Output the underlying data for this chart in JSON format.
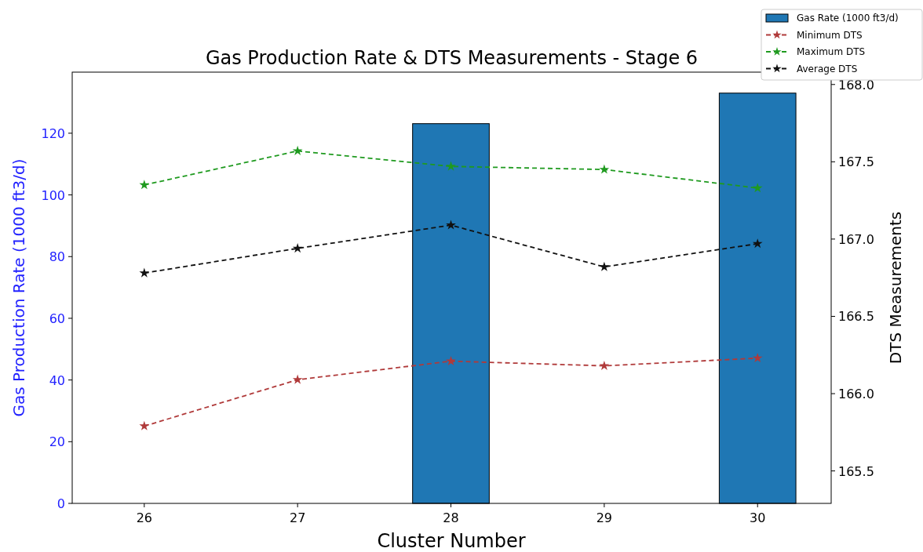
{
  "chart_data": {
    "type": "bar",
    "title": "Gas Production Rate & DTS Measurements - Stage 6",
    "xlabel": "Cluster Number",
    "ylabel": "Gas Production Rate (1000 ft3/d)",
    "y2label": "DTS Measurements",
    "x": [
      26,
      27,
      28,
      29,
      30
    ],
    "xlim": [
      25.53,
      30.48
    ],
    "xticks": [
      26,
      27,
      28,
      29,
      30
    ],
    "ylim": [
      0,
      139.8
    ],
    "yticks": [
      0,
      20,
      40,
      60,
      80,
      100,
      120
    ],
    "y2lim": [
      165.29,
      168.08
    ],
    "y2ticks": [
      165.5,
      {
        "value": 166,
        "label": "166.0"
      },
      166.5,
      {
        "value": 167,
        "label": "167.0"
      },
      167.5,
      {
        "value": 168,
        "label": "168.0"
      }
    ],
    "series": [
      {
        "name": "Gas Rate (1000 ft3/d)",
        "color": "#1f77b4",
        "values": [
          0,
          0,
          123.1,
          0,
          133
        ]
      },
      {
        "name": "Minimum DTS",
        "type": "line",
        "axis": "y2",
        "color": "#b03a3a",
        "marker": "star",
        "line_style": "dashed",
        "values": [
          165.79,
          166.09,
          166.21,
          166.18,
          166.23
        ]
      },
      {
        "name": "Maximum DTS",
        "type": "line",
        "axis": "y2",
        "color": "#1f9a1f",
        "marker": "star",
        "line_style": "dashed",
        "values": [
          167.35,
          167.57,
          167.47,
          167.45,
          167.33
        ]
      },
      {
        "name": "Average DTS",
        "type": "line",
        "axis": "y2",
        "color": "#111111",
        "marker": "star",
        "line_style": "dashed",
        "values": [
          166.78,
          166.94,
          167.09,
          166.82,
          166.97
        ]
      }
    ],
    "grid": false,
    "legend": "top right"
  }
}
